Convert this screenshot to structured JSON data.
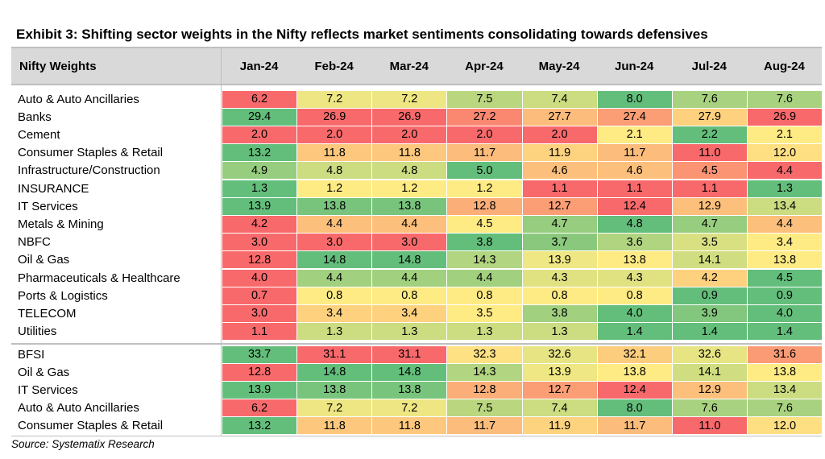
{
  "title": "Exhibit 3: Shifting sector weights in the Nifty reflects market sentiments consolidating towards defensives",
  "source": "Source: Systematix Research",
  "colors": {
    "low": "#f8696b",
    "mid": "#ffeb84",
    "high": "#63be7b",
    "header": "#d9d9d9",
    "rule": "#bfbfbf"
  },
  "chart_data": {
    "type": "table",
    "title": "Exhibit 3: Shifting sector weights in the Nifty reflects market sentiments consolidating towards defensives",
    "corner_header": "Nifty Weights",
    "columns": [
      "Jan-24",
      "Feb-24",
      "Mar-24",
      "Apr-24",
      "May-24",
      "Jun-24",
      "Jul-24",
      "Aug-24"
    ],
    "color_scale": "per-row, red = lowest, yellow = middle, green = highest",
    "groups": [
      {
        "rows": [
          {
            "label": "Auto & Auto Ancillaries",
            "values": [
              "6.2",
              "7.2",
              "7.2",
              "7.5",
              "7.4",
              "8.0",
              "7.6",
              "7.6"
            ]
          },
          {
            "label": "Banks",
            "values": [
              "29.4",
              "26.9",
              "26.9",
              "27.2",
              "27.7",
              "27.4",
              "27.9",
              "26.9"
            ]
          },
          {
            "label": "Cement",
            "values": [
              "2.0",
              "2.0",
              "2.0",
              "2.0",
              "2.0",
              "2.1",
              "2.2",
              "2.1"
            ]
          },
          {
            "label": "Consumer Staples & Retail",
            "values": [
              "13.2",
              "11.8",
              "11.8",
              "11.7",
              "11.9",
              "11.7",
              "11.0",
              "12.0"
            ]
          },
          {
            "label": "Infrastructure/Construction",
            "values": [
              "4.9",
              "4.8",
              "4.8",
              "5.0",
              "4.6",
              "4.6",
              "4.5",
              "4.4"
            ]
          },
          {
            "label": "INSURANCE",
            "values": [
              "1.3",
              "1.2",
              "1.2",
              "1.2",
              "1.1",
              "1.1",
              "1.1",
              "1.3"
            ]
          },
          {
            "label": "IT Services",
            "values": [
              "13.9",
              "13.8",
              "13.8",
              "12.8",
              "12.7",
              "12.4",
              "12.9",
              "13.4"
            ]
          },
          {
            "label": "Metals & Mining",
            "values": [
              "4.2",
              "4.4",
              "4.4",
              "4.5",
              "4.7",
              "4.8",
              "4.7",
              "4.4"
            ]
          },
          {
            "label": "NBFC",
            "values": [
              "3.0",
              "3.0",
              "3.0",
              "3.8",
              "3.7",
              "3.6",
              "3.5",
              "3.4"
            ]
          },
          {
            "label": "Oil & Gas",
            "values": [
              "12.8",
              "14.8",
              "14.8",
              "14.3",
              "13.9",
              "13.8",
              "14.1",
              "13.8"
            ]
          },
          {
            "label": "Pharmaceuticals & Healthcare",
            "values": [
              "4.0",
              "4.4",
              "4.4",
              "4.4",
              "4.3",
              "4.3",
              "4.2",
              "4.5"
            ]
          },
          {
            "label": "Ports & Logistics",
            "values": [
              "0.7",
              "0.8",
              "0.8",
              "0.8",
              "0.8",
              "0.8",
              "0.9",
              "0.9"
            ]
          },
          {
            "label": "TELECOM",
            "values": [
              "3.0",
              "3.4",
              "3.4",
              "3.5",
              "3.8",
              "4.0",
              "3.9",
              "4.0"
            ]
          },
          {
            "label": "Utilities",
            "values": [
              "1.1",
              "1.3",
              "1.3",
              "1.3",
              "1.3",
              "1.4",
              "1.4",
              "1.4"
            ]
          }
        ]
      },
      {
        "rows": [
          {
            "label": "BFSI",
            "values": [
              "33.7",
              "31.1",
              "31.1",
              "32.3",
              "32.6",
              "32.1",
              "32.6",
              "31.6"
            ]
          },
          {
            "label": "Oil & Gas",
            "values": [
              "12.8",
              "14.8",
              "14.8",
              "14.3",
              "13.9",
              "13.8",
              "14.1",
              "13.8"
            ]
          },
          {
            "label": "IT Services",
            "values": [
              "13.9",
              "13.8",
              "13.8",
              "12.8",
              "12.7",
              "12.4",
              "12.9",
              "13.4"
            ]
          },
          {
            "label": "Auto & Auto Ancillaries",
            "values": [
              "6.2",
              "7.2",
              "7.2",
              "7.5",
              "7.4",
              "8.0",
              "7.6",
              "7.6"
            ]
          },
          {
            "label": "Consumer Staples & Retail",
            "values": [
              "13.2",
              "11.8",
              "11.8",
              "11.7",
              "11.9",
              "11.7",
              "11.0",
              "12.0"
            ]
          }
        ]
      }
    ]
  }
}
